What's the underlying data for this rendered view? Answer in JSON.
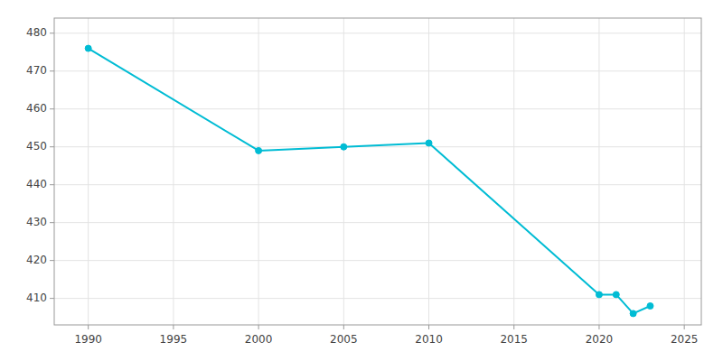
{
  "chart_data": {
    "type": "line",
    "x": [
      1990,
      2000,
      2005,
      2010,
      2020,
      2021,
      2022,
      2023
    ],
    "series": [
      {
        "color": "#00BCD4",
        "marker": "circle",
        "values": [
          476,
          449,
          450,
          451,
          411,
          411,
          406,
          408
        ]
      }
    ],
    "xlim": [
      1988,
      2026
    ],
    "ylim": [
      403,
      484
    ],
    "xticks": [
      1990,
      1995,
      2000,
      2005,
      2010,
      2015,
      2020,
      2025
    ],
    "yticks": [
      410,
      420,
      430,
      440,
      450,
      460,
      470,
      480
    ],
    "grid": true
  }
}
